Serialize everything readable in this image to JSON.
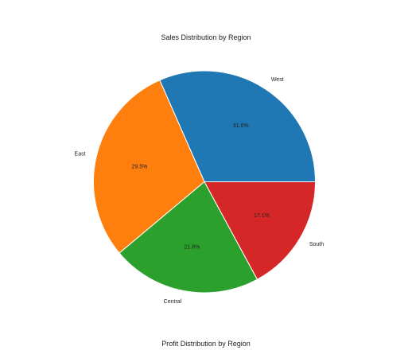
{
  "chart_data": [
    {
      "type": "pie",
      "title": "Sales Distribution by Region",
      "labels": [
        "West",
        "East",
        "Central",
        "South"
      ],
      "values": [
        31.6,
        29.5,
        21.8,
        17.1
      ],
      "percent_labels": [
        "31.6%",
        "29.5%",
        "21.8%",
        "17.1%"
      ],
      "colors": [
        "#1f77b4",
        "#ff7f0e",
        "#2ca02c",
        "#d62728"
      ],
      "start_angle": 0,
      "direction": "counterclockwise",
      "legend": "none"
    },
    {
      "type": "pie",
      "title": "Profit Distribution by Region"
    }
  ]
}
